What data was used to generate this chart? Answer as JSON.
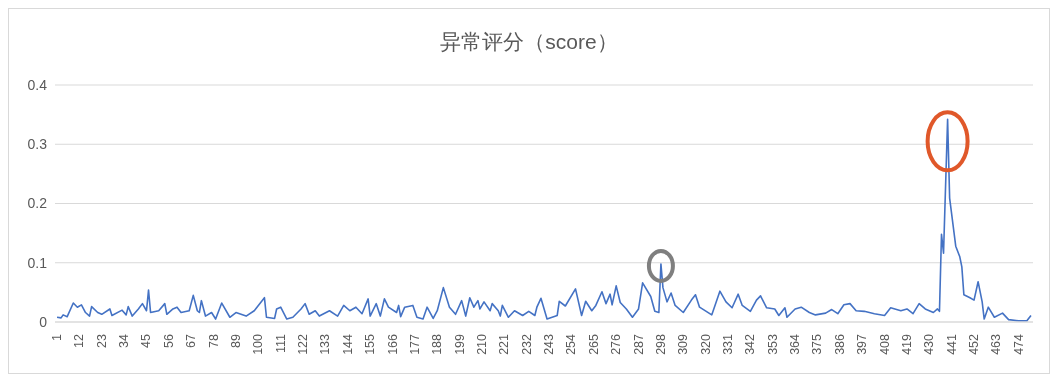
{
  "chart_data": {
    "type": "line",
    "title": "异常评分（score）",
    "x": [
      1,
      3,
      4,
      6,
      9,
      11,
      13,
      15,
      17,
      18,
      21,
      23,
      27,
      28,
      33,
      35,
      36,
      38,
      41,
      43,
      45,
      46,
      47,
      51,
      54,
      55,
      58,
      60,
      62,
      66,
      68,
      70,
      71,
      72,
      74,
      77,
      79,
      82,
      86,
      89,
      94,
      98,
      103,
      104,
      108,
      109,
      111,
      114,
      117,
      121,
      123,
      125,
      128,
      130,
      135,
      139,
      142,
      145,
      148,
      151,
      154,
      155,
      158,
      160,
      162,
      164,
      168,
      169,
      170,
      172,
      176,
      178,
      181,
      183,
      186,
      188,
      191,
      194,
      197,
      200,
      202,
      204,
      206,
      208,
      209,
      211,
      214,
      215,
      218,
      219,
      220,
      223,
      226,
      230,
      233,
      236,
      237,
      239,
      242,
      247,
      248,
      251,
      256,
      259,
      261,
      264,
      266,
      269,
      271,
      273,
      274,
      276,
      278,
      281,
      284,
      287,
      289,
      293,
      295,
      297,
      298,
      299,
      301,
      303,
      305,
      309,
      313,
      315,
      317,
      323,
      327,
      330,
      333,
      336,
      338,
      342,
      345,
      347,
      350,
      354,
      356,
      359,
      360,
      364,
      367,
      371,
      374,
      379,
      382,
      385,
      388,
      391,
      394,
      398,
      403,
      408,
      411,
      416,
      419,
      422,
      425,
      428,
      432,
      434,
      435,
      436,
      437,
      439,
      440,
      443,
      445,
      446,
      447,
      450,
      452,
      454,
      456,
      457,
      459,
      462,
      466,
      469,
      474,
      478,
      480
    ],
    "series": [
      {
        "color": "#4472c4",
        "values": [
          0.008,
          0.007,
          0.012,
          0.009,
          0.032,
          0.025,
          0.029,
          0.016,
          0.01,
          0.026,
          0.016,
          0.013,
          0.022,
          0.011,
          0.02,
          0.012,
          0.026,
          0.01,
          0.022,
          0.031,
          0.019,
          0.054,
          0.016,
          0.019,
          0.031,
          0.013,
          0.022,
          0.025,
          0.016,
          0.019,
          0.045,
          0.019,
          0.016,
          0.036,
          0.01,
          0.016,
          0.005,
          0.032,
          0.008,
          0.016,
          0.01,
          0.019,
          0.041,
          0.008,
          0.006,
          0.022,
          0.025,
          0.005,
          0.008,
          0.022,
          0.031,
          0.013,
          0.019,
          0.01,
          0.019,
          0.01,
          0.028,
          0.019,
          0.025,
          0.014,
          0.039,
          0.01,
          0.031,
          0.01,
          0.039,
          0.025,
          0.016,
          0.028,
          0.009,
          0.025,
          0.028,
          0.008,
          0.005,
          0.025,
          0.006,
          0.019,
          0.058,
          0.025,
          0.013,
          0.036,
          0.01,
          0.041,
          0.025,
          0.036,
          0.022,
          0.034,
          0.019,
          0.031,
          0.019,
          0.01,
          0.028,
          0.008,
          0.019,
          0.011,
          0.018,
          0.011,
          0.025,
          0.04,
          0.005,
          0.011,
          0.035,
          0.027,
          0.056,
          0.011,
          0.035,
          0.019,
          0.028,
          0.051,
          0.031,
          0.047,
          0.029,
          0.061,
          0.033,
          0.022,
          0.008,
          0.022,
          0.066,
          0.043,
          0.018,
          0.016,
          0.098,
          0.058,
          0.034,
          0.049,
          0.028,
          0.016,
          0.037,
          0.046,
          0.025,
          0.012,
          0.052,
          0.034,
          0.024,
          0.047,
          0.028,
          0.018,
          0.037,
          0.044,
          0.024,
          0.022,
          0.011,
          0.024,
          0.008,
          0.022,
          0.025,
          0.016,
          0.012,
          0.015,
          0.021,
          0.014,
          0.029,
          0.031,
          0.019,
          0.018,
          0.014,
          0.011,
          0.024,
          0.019,
          0.022,
          0.014,
          0.031,
          0.022,
          0.016,
          0.022,
          0.018,
          0.148,
          0.116,
          0.342,
          0.209,
          0.128,
          0.11,
          0.093,
          0.046,
          0.041,
          0.037,
          0.068,
          0.034,
          0.005,
          0.025,
          0.008,
          0.015,
          0.004,
          0.002,
          0.002,
          0.011
        ]
      }
    ],
    "xlim": [
      0,
      481
    ],
    "xticks": [
      1,
      12,
      23,
      34,
      45,
      56,
      67,
      78,
      89,
      100,
      111,
      122,
      133,
      144,
      155,
      166,
      177,
      188,
      199,
      210,
      221,
      232,
      243,
      254,
      265,
      276,
      287,
      298,
      309,
      320,
      331,
      342,
      353,
      364,
      375,
      386,
      397,
      408,
      419,
      430,
      441,
      452,
      463,
      474
    ],
    "ylim": [
      0,
      0.4
    ],
    "yticks": [
      0,
      0.1,
      0.2,
      0.3,
      0.4
    ],
    "grid": "y"
  }
}
